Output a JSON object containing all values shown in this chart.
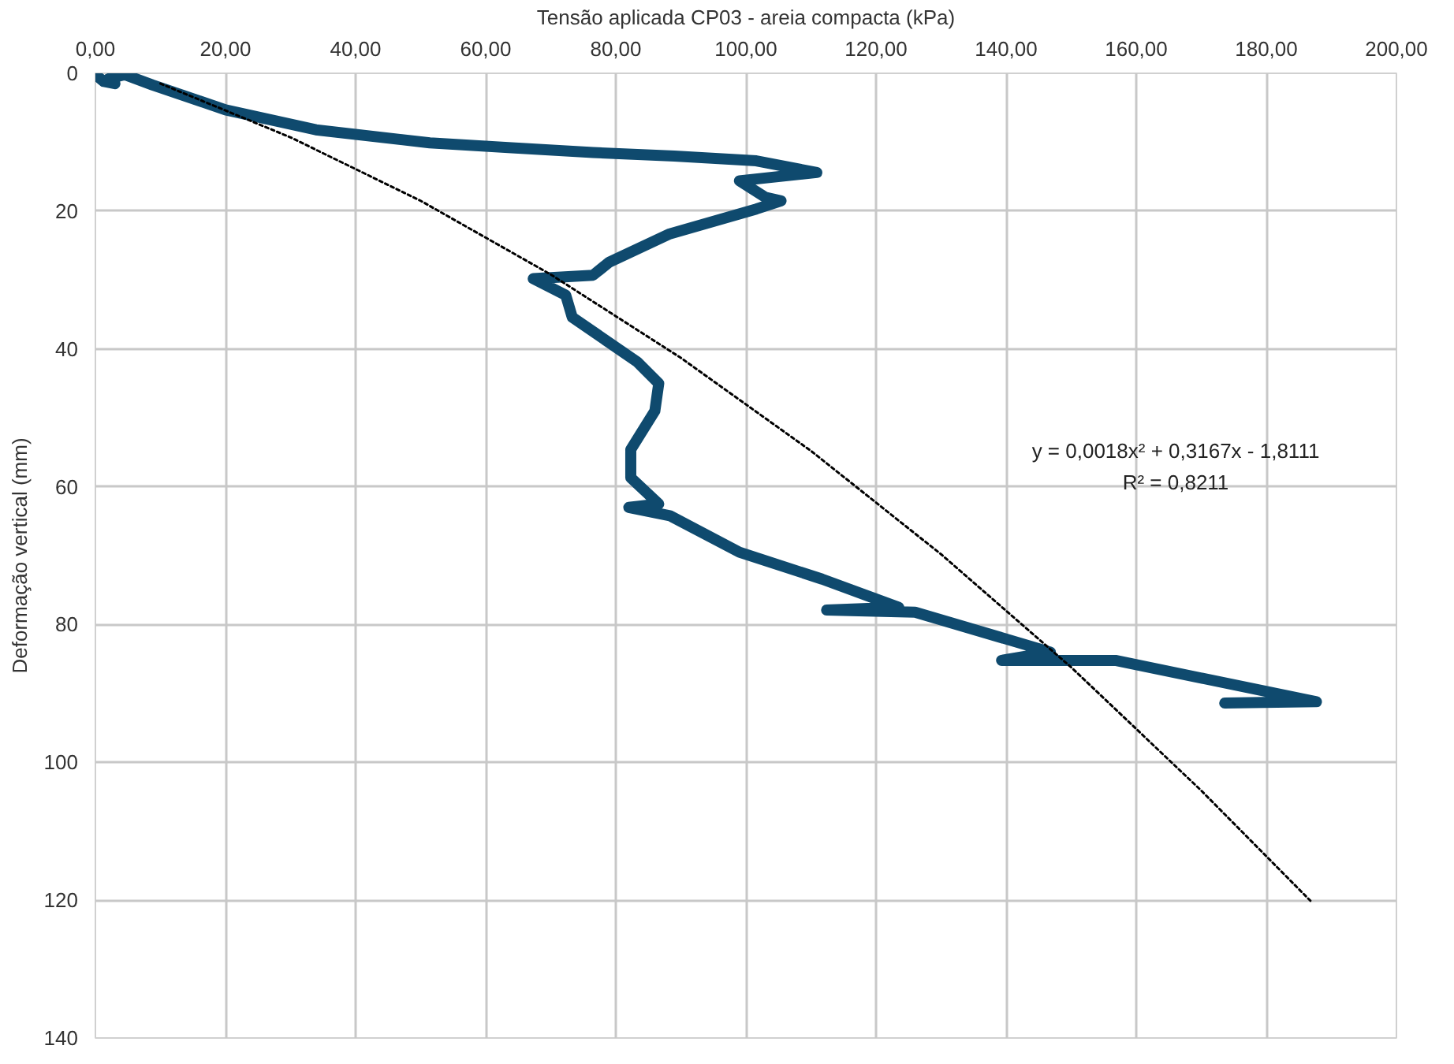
{
  "chart_data": {
    "type": "line",
    "xlabel": "Tensão aplicada CP03 - areia compacta (kPa)",
    "ylabel": "Deformação vertical (mm)",
    "xlim": [
      0,
      200
    ],
    "xticks": [
      {
        "value": 0,
        "label": "0,00"
      },
      {
        "value": 20,
        "label": "20,00"
      },
      {
        "value": 40,
        "label": "40,00"
      },
      {
        "value": 60,
        "label": "60,00"
      },
      {
        "value": 80,
        "label": "80,00"
      },
      {
        "value": 100,
        "label": "100,00"
      },
      {
        "value": 120,
        "label": "120,00"
      },
      {
        "value": 140,
        "label": "140,00"
      },
      {
        "value": 160,
        "label": "160,00"
      },
      {
        "value": 180,
        "label": "180,00"
      },
      {
        "value": 200,
        "label": "200,00"
      }
    ],
    "ylim": [
      140,
      0
    ],
    "yticks": [
      0,
      20,
      40,
      60,
      80,
      100,
      120,
      140
    ],
    "grid": true,
    "marker": "none",
    "series": [
      {
        "color": "#0f4a6e",
        "line_style": "solid",
        "x": [
          0,
          1.3,
          3,
          2,
          4.5,
          8.8,
          20,
          33.9,
          51.4,
          64,
          76.5,
          89,
          101.6,
          110.9,
          99,
          103,
          105.4,
          101.6,
          88.3,
          79,
          76.5,
          67.3,
          72.3,
          73.3,
          83.3,
          86.6,
          86,
          82.3,
          82.3,
          86.6,
          82,
          88.3,
          99,
          111.7,
          123.5,
          112.4,
          126,
          146.8,
          139.3,
          156.8,
          187.7,
          173.6
        ],
        "values": [
          0.2,
          1.2,
          1.5,
          0.8,
          0.2,
          1.7,
          5.3,
          8.2,
          10.1,
          10.8,
          11.5,
          12,
          12.7,
          14.4,
          15.6,
          18,
          18.5,
          19.7,
          23.3,
          27.4,
          29.3,
          29.8,
          32.2,
          35.4,
          41.9,
          45,
          49,
          54.6,
          58.7,
          62.5,
          63,
          64.2,
          69.5,
          73.4,
          77.5,
          77.9,
          78.2,
          84,
          85.2,
          85.2,
          91.2,
          91.4
        ]
      },
      {
        "type": "line",
        "color": "#000000",
        "line_style": "dotted",
        "x": [
          10,
          30,
          50,
          70,
          90,
          110,
          130,
          150,
          170,
          187
        ],
        "values": [
          1.5,
          9.3,
          18.5,
          29.2,
          41.3,
          54.8,
          69.8,
          86.2,
          104.1,
          120.3
        ]
      }
    ],
    "annotations": [
      "y = 0,0018x² + 0,3167x - 1,8111",
      "R² = 0,8211"
    ]
  }
}
